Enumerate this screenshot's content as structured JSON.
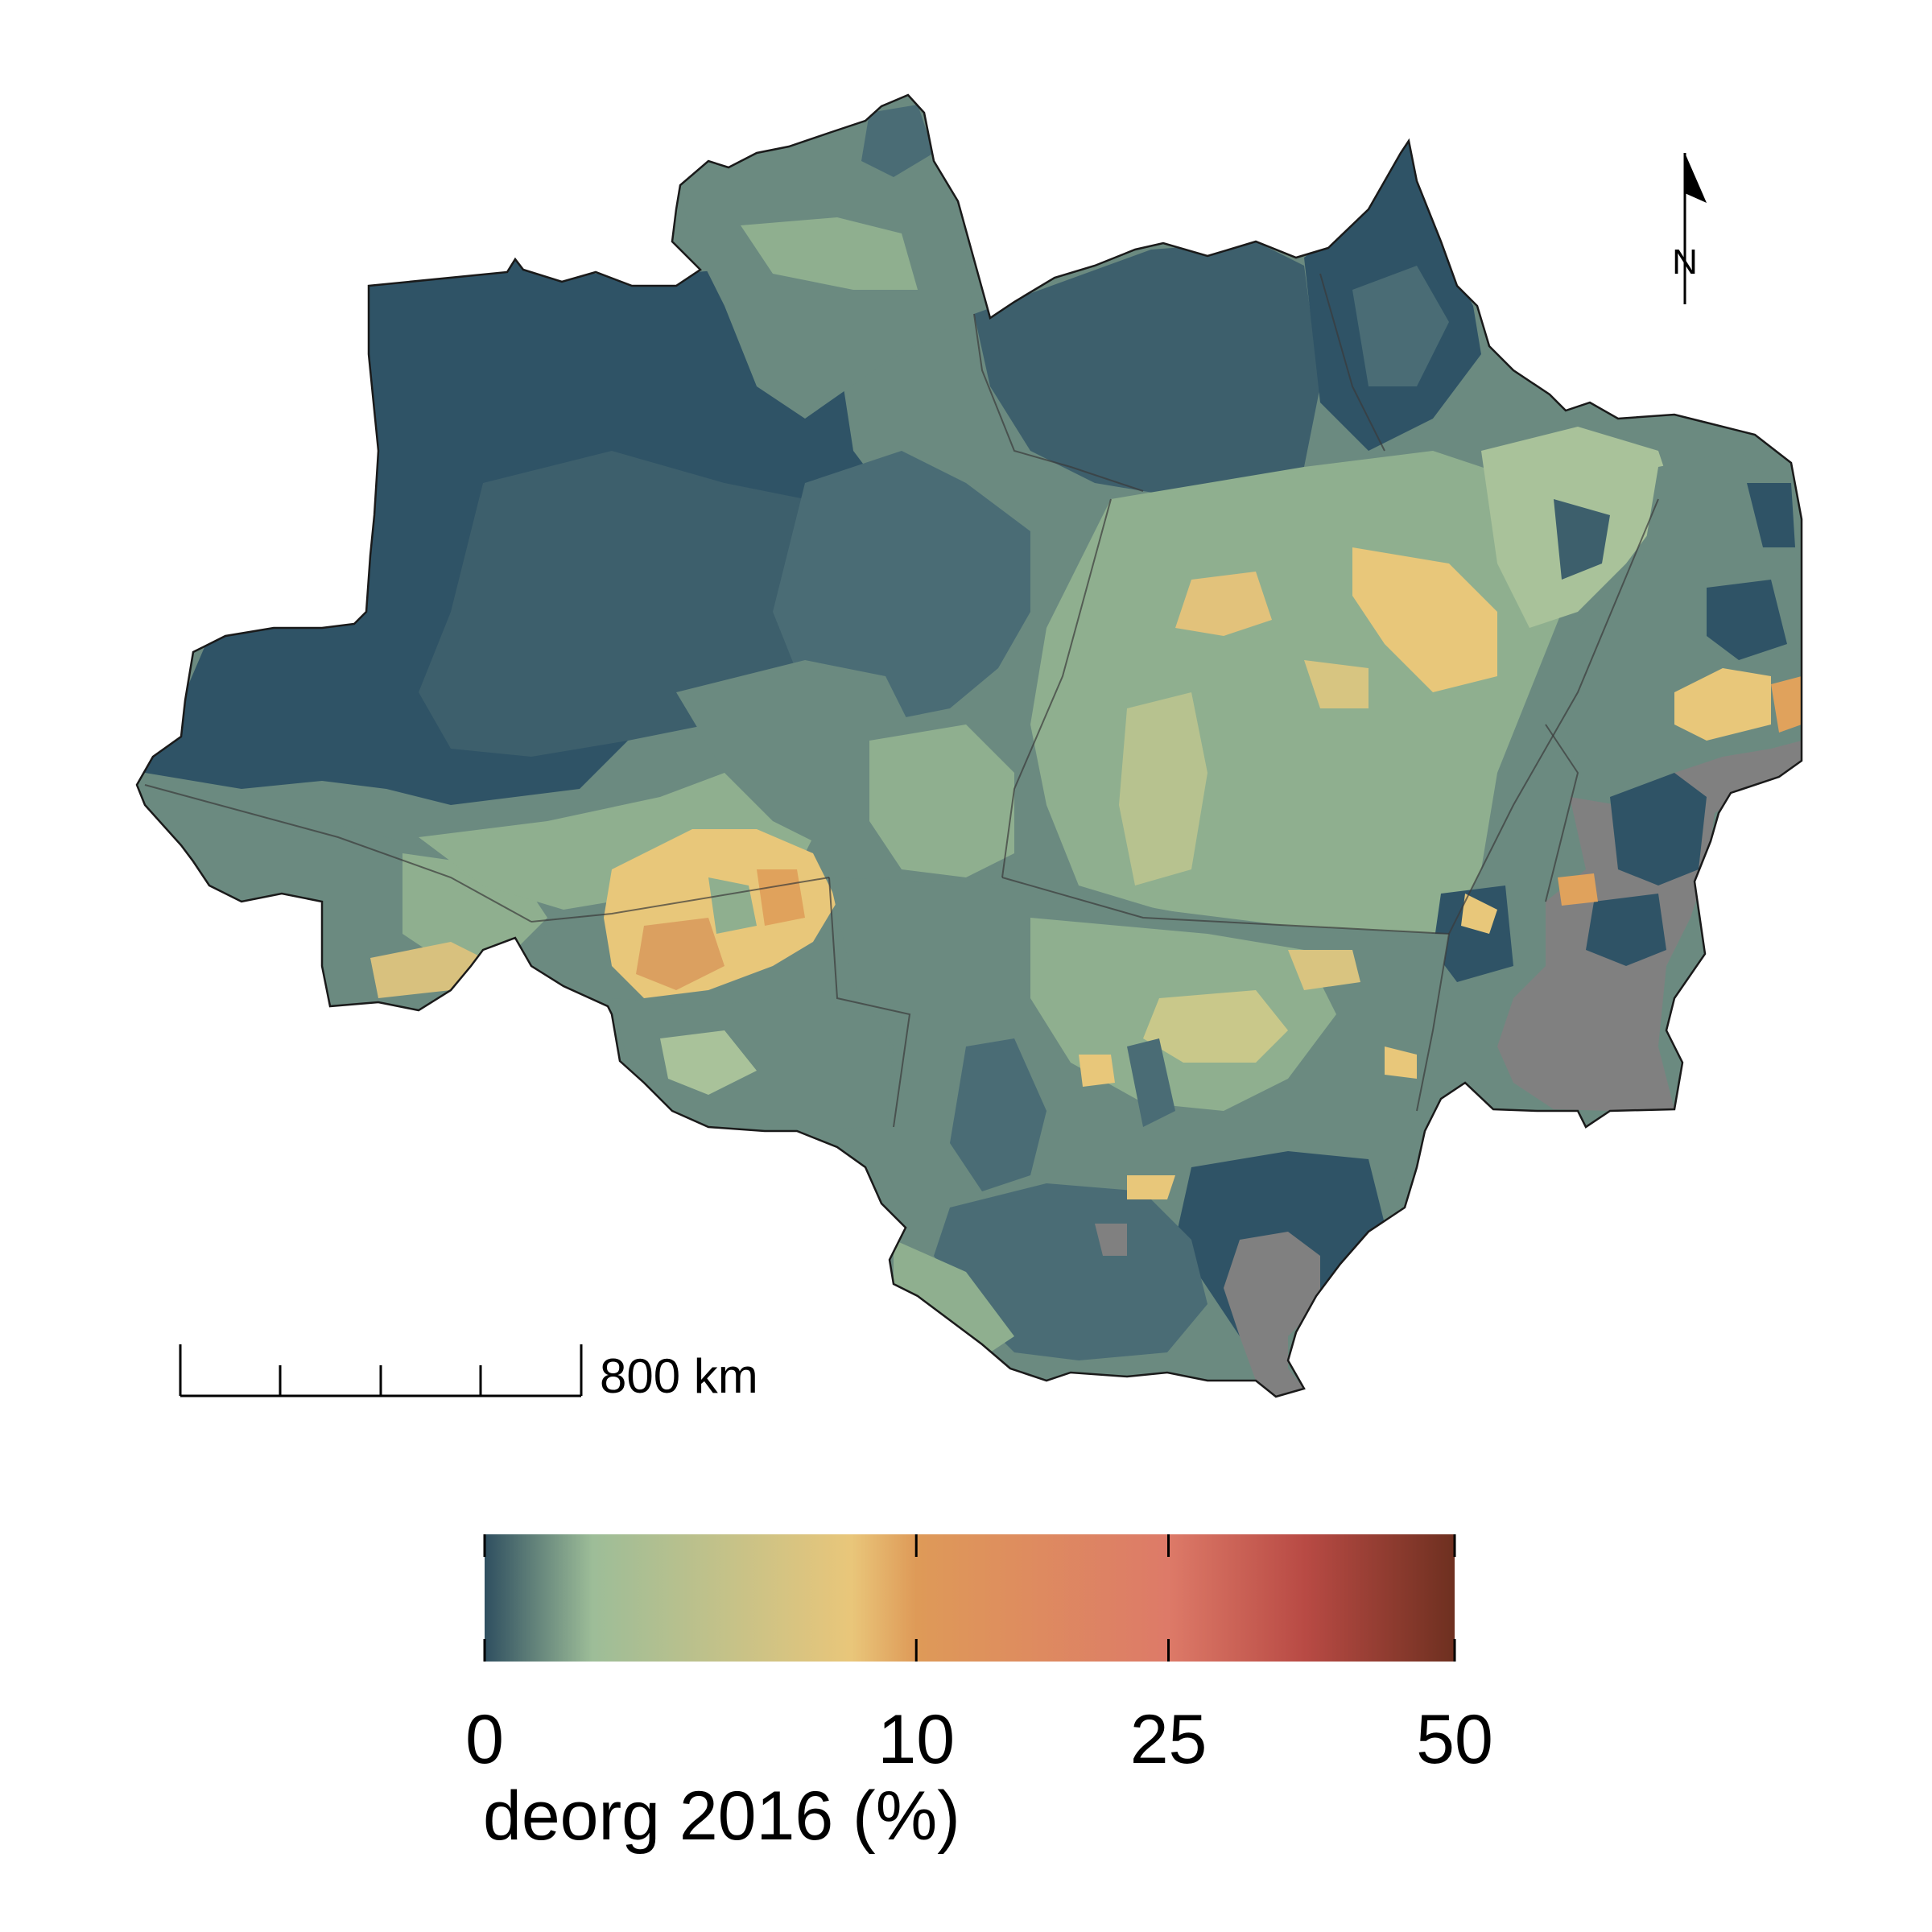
{
  "map": {
    "region": "Brazilian Legal Amazon municipalities",
    "colors": {
      "dark_teal": "#2f5366",
      "teal": "#4a6c75",
      "grey_green": "#6b8a80",
      "sage": "#8faf8f",
      "light_sage": "#a9c29a",
      "khaki": "#c9c88a",
      "yellow": "#e8c77a",
      "orange": "#e0a25c",
      "no_data": "#808080",
      "border": "#333333"
    }
  },
  "scale_bar": {
    "label": "800 km"
  },
  "north_arrow": {
    "label": "N"
  },
  "legend": {
    "title": "deorg 2016 (%)",
    "tick_labels": [
      "0",
      "10",
      "25",
      "50"
    ],
    "tick_values": [
      0,
      10,
      25,
      50
    ],
    "stops": [
      {
        "value": 0,
        "color": "#2f4f60"
      },
      {
        "value": 2.5,
        "color": "#9dbd98"
      },
      {
        "value": 8.5,
        "color": "#e9c67a"
      },
      {
        "value": 10,
        "color": "#de9a58"
      },
      {
        "value": 25,
        "color": "#dd7a68"
      },
      {
        "value": 37,
        "color": "#b84a44"
      },
      {
        "value": 50,
        "color": "#6e3020"
      }
    ]
  }
}
